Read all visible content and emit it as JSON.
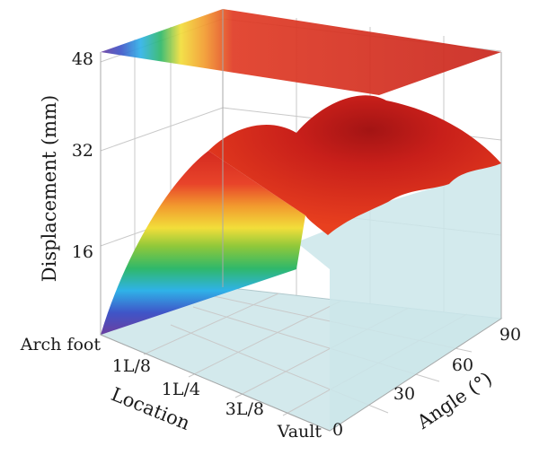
{
  "chart_data": {
    "type": "surface-3d",
    "title": "",
    "zlabel": "Displacement (mm)",
    "xlabel": "Location",
    "ylabel": "Angle (°)",
    "z_ticks": [
      "16",
      "32",
      "48"
    ],
    "x_ticks": [
      "Arch foot",
      "1L/8",
      "1L/4",
      "3L/8",
      "Vault"
    ],
    "y_ticks": [
      "0",
      "30",
      "60",
      "90"
    ],
    "zlim": [
      0,
      48
    ],
    "grid": true,
    "colormap": "rainbow (violet-blue-cyan-green-yellow-orange-red)",
    "surface": {
      "locations": [
        "Arch foot",
        "1L/8",
        "1L/4",
        "3L/8",
        "Vault"
      ],
      "angles": [
        0,
        30,
        60,
        90
      ],
      "displacement_mm": [
        [
          0,
          0,
          0,
          0
        ],
        [
          21,
          26,
          22,
          16
        ],
        [
          33,
          40,
          37,
          27
        ],
        [
          37,
          44,
          40,
          29
        ],
        [
          38,
          45,
          41,
          30
        ]
      ]
    }
  }
}
